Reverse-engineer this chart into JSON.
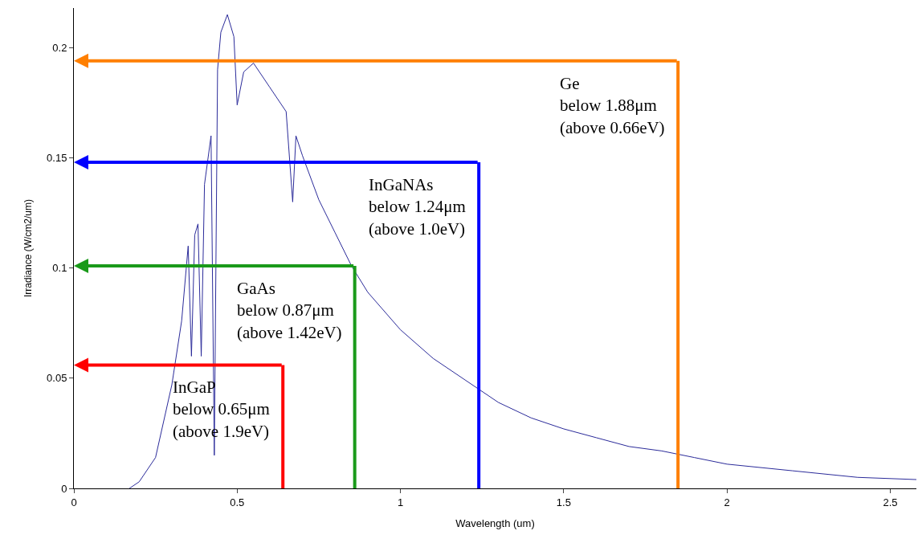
{
  "chart_data": {
    "type": "line",
    "xlabel": "Wavelength (um)",
    "ylabel": "Irradiance (W/cm2/um)",
    "xlim": [
      0,
      2.58
    ],
    "ylim": [
      0,
      0.218
    ],
    "xticks": [
      0,
      0.5,
      1,
      1.5,
      2,
      2.5
    ],
    "yticks": [
      0,
      0.05,
      0.1,
      0.15,
      0.2
    ],
    "series": [
      {
        "color": "#2b2b9a",
        "x": [
          0.17,
          0.2,
          0.25,
          0.3,
          0.33,
          0.35,
          0.36,
          0.37,
          0.38,
          0.39,
          0.4,
          0.42,
          0.43,
          0.44,
          0.45,
          0.47,
          0.49,
          0.5,
          0.52,
          0.55,
          0.6,
          0.65,
          0.67,
          0.68,
          0.7,
          0.75,
          0.8,
          0.85,
          0.9,
          1.0,
          1.1,
          1.2,
          1.3,
          1.4,
          1.5,
          1.6,
          1.7,
          1.8,
          1.9,
          2.0,
          2.2,
          2.4,
          2.58
        ],
        "values": [
          0,
          0.003,
          0.014,
          0.047,
          0.076,
          0.11,
          0.06,
          0.115,
          0.12,
          0.06,
          0.138,
          0.16,
          0.015,
          0.19,
          0.207,
          0.215,
          0.205,
          0.174,
          0.189,
          0.193,
          0.182,
          0.171,
          0.13,
          0.16,
          0.151,
          0.131,
          0.116,
          0.101,
          0.089,
          0.072,
          0.059,
          0.049,
          0.039,
          0.032,
          0.027,
          0.023,
          0.019,
          0.017,
          0.014,
          0.011,
          0.008,
          0.005,
          0.004
        ]
      }
    ],
    "ref_lines": [
      {
        "axis": "x",
        "value": 1.85,
        "label": "Ge\nbelow 1.88μm\n(above 0.66eV)",
        "color": "#ff7f00"
      },
      {
        "axis": "y",
        "value": 0.194,
        "color": "#ff7f00"
      },
      {
        "axis": "x",
        "value": 1.24,
        "label": "InGaNAs\nbelow 1.24μm\n(above 1.0eV)",
        "color": "#0000ff"
      },
      {
        "axis": "y",
        "value": 0.148,
        "color": "#0000ff"
      },
      {
        "axis": "x",
        "value": 0.86,
        "label": "GaAs\nbelow 0.87μm\n(above 1.42eV)",
        "color": "#1a9a1a"
      },
      {
        "axis": "y",
        "value": 0.101,
        "color": "#1a9a1a"
      },
      {
        "axis": "x",
        "value": 0.64,
        "label": "InGaP\nbelow 0.65μm\n(above 1.9eV)",
        "color": "#ff0000"
      },
      {
        "axis": "y",
        "value": 0.056,
        "color": "#ff0000"
      }
    ]
  }
}
